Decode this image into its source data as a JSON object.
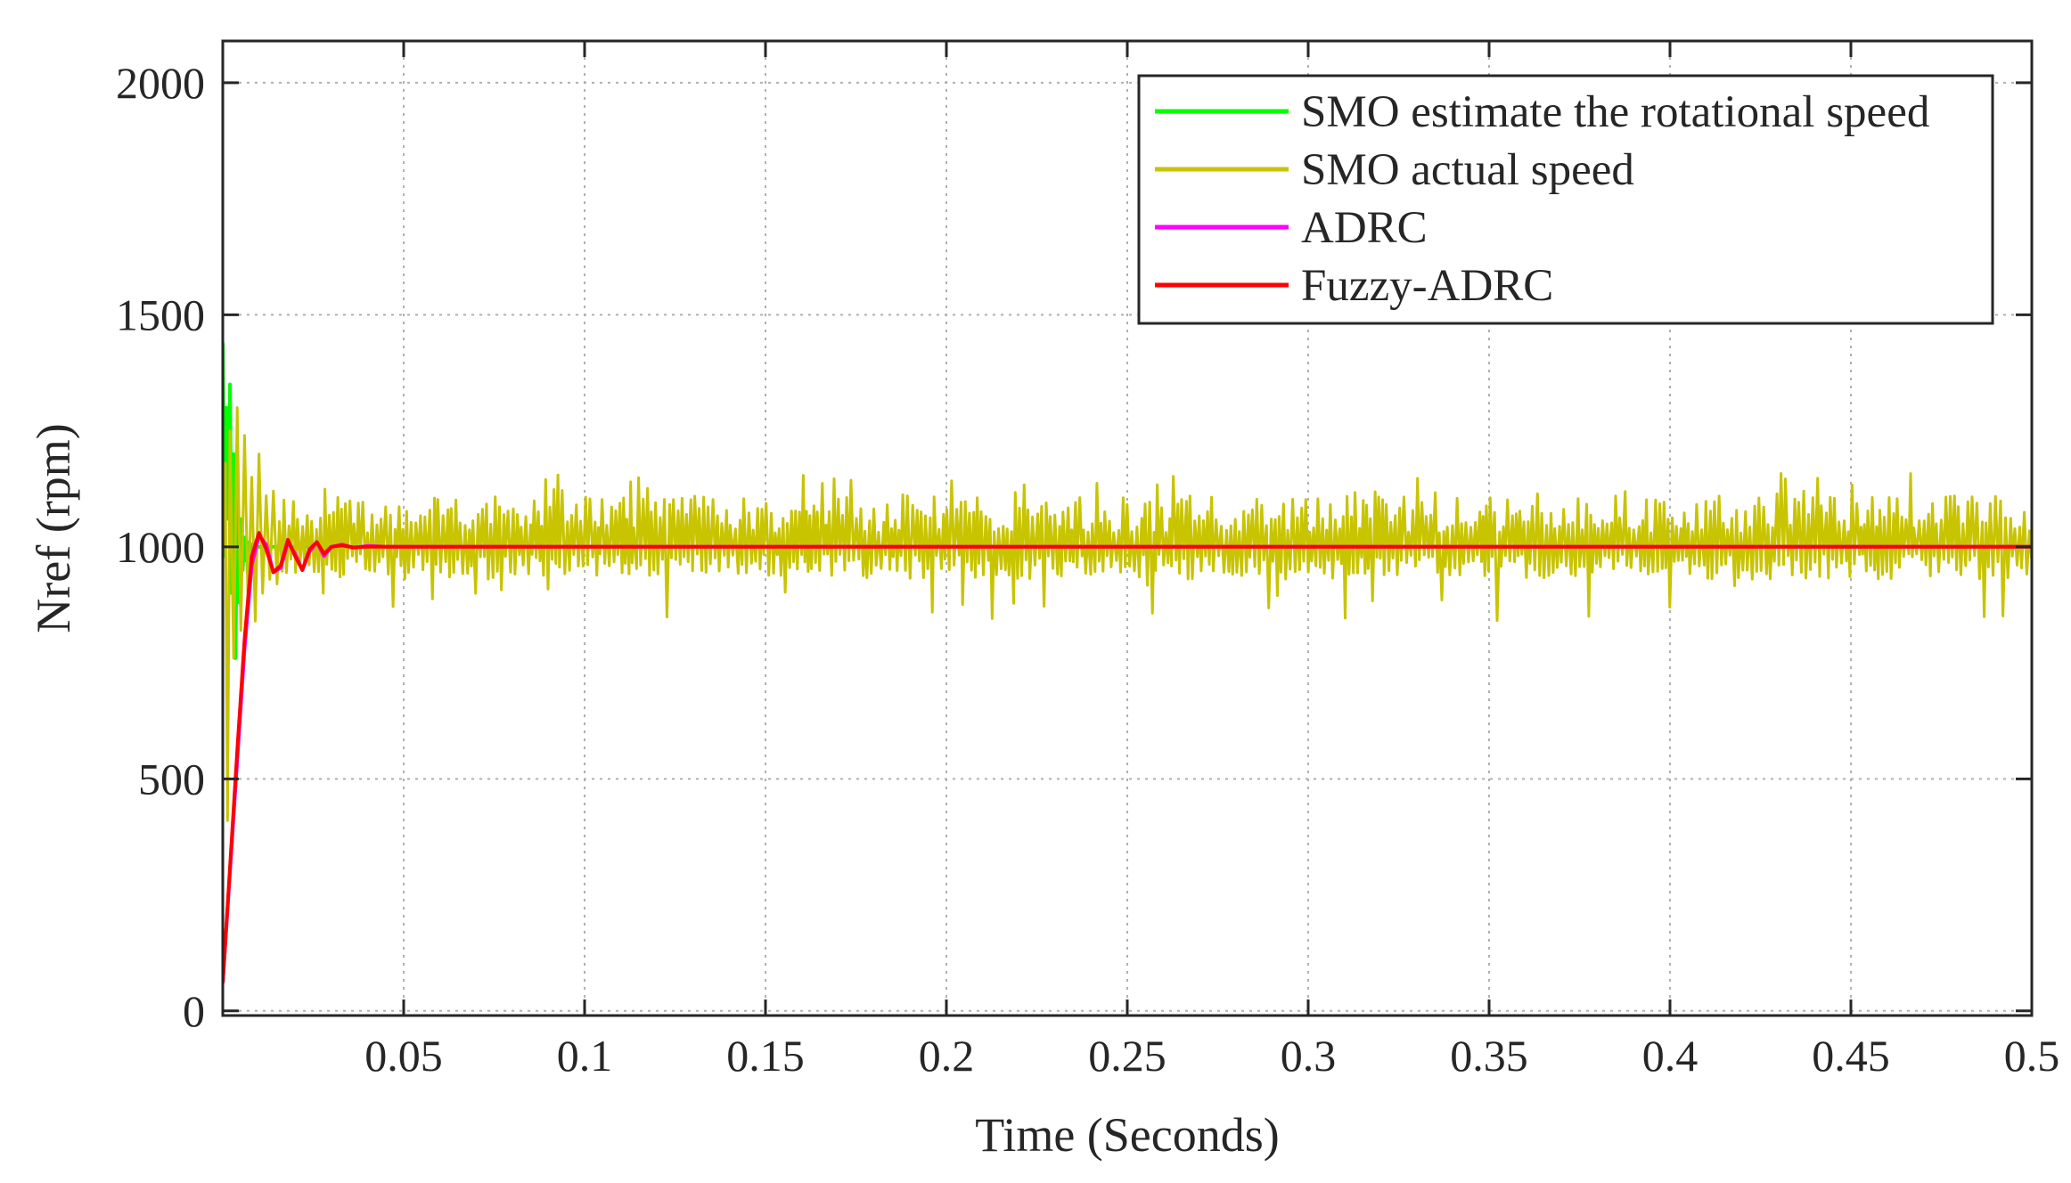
{
  "chart_data": {
    "type": "line",
    "title": "",
    "xlabel": "Time (Seconds)",
    "ylabel": "Nref (rpm)",
    "xlim": [
      0,
      0.5
    ],
    "ylim": [
      -10,
      2090
    ],
    "grid": true,
    "legend_position": "top-right",
    "x_ticks": [
      0.05,
      0.1,
      0.15,
      0.2,
      0.25,
      0.3,
      0.35,
      0.4,
      0.45,
      0.5
    ],
    "x_tick_labels": [
      "0.05",
      "0.1",
      "0.15",
      "0.2",
      "0.25",
      "0.3",
      "0.35",
      "0.4",
      "0.45",
      "0.5"
    ],
    "y_ticks": [
      0,
      500,
      1000,
      1500,
      2000
    ],
    "y_tick_labels": [
      "0",
      "500",
      "1000",
      "1500",
      "2000"
    ],
    "series": [
      {
        "name": "SMO estimate the rotational speed",
        "color": "#00ff00",
        "x": [
          0,
          0.0005,
          0.001,
          0.0015,
          0.002,
          0.0025,
          0.003,
          0.0035,
          0.004,
          0.0045,
          0.005,
          0.0055,
          0.006,
          0.0065,
          0.007,
          0.0075,
          0.008,
          0.0085,
          0.009,
          0.0095,
          0.01
        ],
        "y": [
          1440,
          980,
          1300,
          1060,
          1350,
          900,
          1200,
          760,
          1100,
          880,
          1060,
          950,
          1020,
          970,
          1010,
          985,
          1005,
          995,
          1002,
          998,
          1000
        ],
        "note": "settles to 1000 rpm and stays underneath the other traces"
      },
      {
        "name": "SMO actual speed",
        "color": "#c8c400",
        "center": 1000,
        "peak_high": 1160,
        "peak_low": 840,
        "note": "noisy oscillation about 1000 rpm between roughly 930 and 1100 rpm for the full 0-0.5 s span, with large startup swings (410 to 1300 rpm) before 0.015 s"
      },
      {
        "name": "ADRC",
        "color": "#ff00ff",
        "x": [
          0,
          0.002,
          0.004,
          0.006,
          0.008,
          0.01,
          0.012,
          0.014,
          0.016,
          0.018,
          0.02,
          0.022,
          0.024,
          0.026,
          0.028,
          0.03,
          0.033,
          0.036,
          0.04,
          0.045,
          0.5
        ],
        "y": [
          60,
          300,
          540,
          780,
          960,
          1025,
          1005,
          945,
          955,
          1010,
          985,
          950,
          990,
          1010,
          980,
          1000,
          1005,
          998,
          1002,
          1000,
          1000
        ]
      },
      {
        "name": "Fuzzy-ADRC",
        "color": "#ff0000",
        "x": [
          0,
          0.002,
          0.004,
          0.006,
          0.008,
          0.01,
          0.012,
          0.014,
          0.016,
          0.018,
          0.02,
          0.022,
          0.024,
          0.026,
          0.028,
          0.03,
          0.033,
          0.036,
          0.04,
          0.5
        ],
        "y": [
          60,
          310,
          560,
          800,
          980,
          1030,
          995,
          945,
          960,
          1015,
          980,
          950,
          995,
          1010,
          985,
          1000,
          1003,
          999,
          1000,
          1000
        ]
      }
    ]
  }
}
